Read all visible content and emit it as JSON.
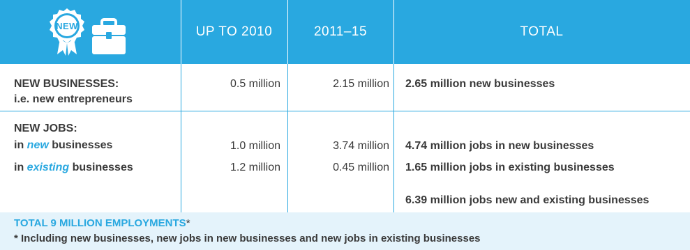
{
  "header": {
    "badge_text": "NEW",
    "col_upto2010": "UP TO 2010",
    "col_2011_15": "2011–15",
    "col_total": "TOTAL",
    "accent": "#29a8e0"
  },
  "rows": {
    "new_businesses": {
      "label": "NEW BUSINESSES:",
      "sublabel": "i.e. new entrepreneurs",
      "upto2010": "0.5 million",
      "y2011_15": "2.15 million",
      "total": "2.65 million new businesses"
    },
    "new_jobs": {
      "label": "NEW JOBS:",
      "new": {
        "prefix": "in ",
        "emphasis": "new",
        "suffix": " businesses",
        "upto2010": "1.0 million",
        "y2011_15": "3.74 million",
        "total": "4.74 million jobs in new businesses"
      },
      "existing": {
        "prefix": "in ",
        "emphasis": "existing",
        "suffix": " businesses",
        "upto2010": "1.2 million",
        "y2011_15": "0.45 million",
        "total": "1.65 million jobs in existing businesses"
      },
      "combined_total": "6.39 million jobs new and existing businesses"
    }
  },
  "footer": {
    "title": "TOTAL 9 MILLION EMPLOYMENTS",
    "star": "*",
    "note": "* Including new businesses, new jobs in new businesses and new jobs in existing businesses"
  },
  "icons": [
    "new-badge-icon",
    "briefcase-icon"
  ]
}
